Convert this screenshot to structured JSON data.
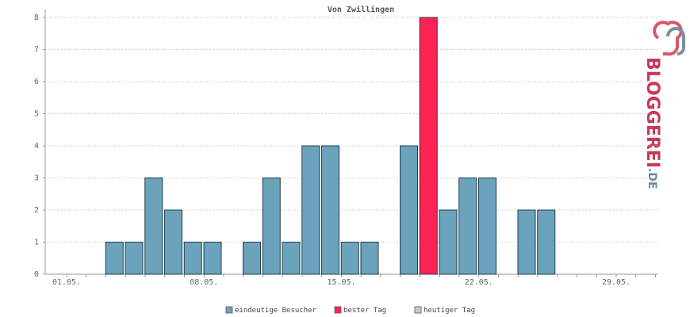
{
  "chart_data": {
    "type": "bar",
    "title": "Von Zwillingen",
    "categories": [
      "01.05.",
      null,
      null,
      null,
      null,
      null,
      null,
      "08.05.",
      null,
      null,
      null,
      null,
      null,
      null,
      "15.05.",
      null,
      null,
      null,
      null,
      null,
      null,
      "22.05.",
      null,
      null,
      null,
      null,
      null,
      null,
      "29.05.",
      null,
      null
    ],
    "series": [
      {
        "name": "eindeutige Besucher",
        "color": "#6aa3bb",
        "values": [
          0,
          1,
          1,
          3,
          2,
          1,
          1,
          0,
          1,
          3,
          1,
          4,
          4,
          1,
          1,
          0,
          4,
          null,
          2,
          3,
          3,
          0,
          2,
          2,
          0,
          0,
          0,
          0,
          0,
          0,
          0
        ]
      },
      {
        "name": "bester Tag",
        "color": "#ff2255",
        "values": [
          null,
          null,
          null,
          null,
          null,
          null,
          null,
          null,
          null,
          null,
          null,
          null,
          null,
          null,
          null,
          null,
          null,
          8,
          null,
          null,
          null,
          null,
          null,
          null,
          null,
          null,
          null,
          null,
          null,
          null,
          null
        ]
      },
      {
        "name": "heutiger Tag",
        "color": "#cccccc",
        "values": [
          null,
          null,
          null,
          null,
          null,
          null,
          null,
          null,
          null,
          null,
          null,
          null,
          null,
          null,
          null,
          null,
          null,
          null,
          null,
          null,
          null,
          null,
          null,
          null,
          null,
          null,
          null,
          null,
          null,
          null,
          null
        ]
      }
    ],
    "ylim": [
      0,
      8
    ],
    "yticks": [
      0,
      1,
      2,
      3,
      4,
      5,
      6,
      7,
      8
    ],
    "grid": true,
    "watermark": [
      "BLOGGEREI",
      ".DE"
    ]
  }
}
